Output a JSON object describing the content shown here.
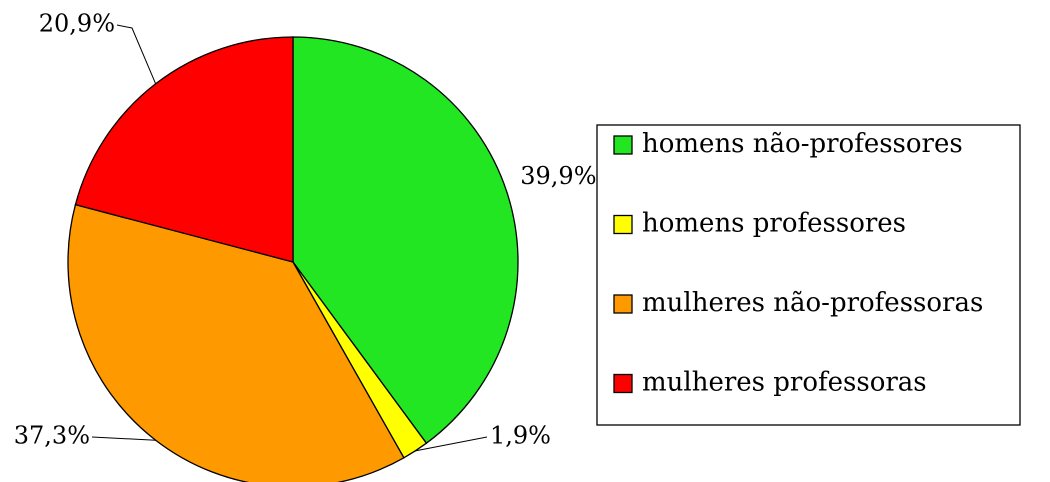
{
  "chart_data": {
    "type": "pie",
    "categories": [
      "homens não-professores",
      "homens professores",
      "mulheres não-professoras",
      "mulheres professoras"
    ],
    "values": [
      39.9,
      1.9,
      37.3,
      20.9
    ],
    "value_labels": [
      "39,9%",
      "1,9%",
      "37,3%",
      "20,9%"
    ],
    "colors": [
      "#22e622",
      "#ffff00",
      "#ff9900",
      "#ff0000"
    ],
    "legend": "right"
  }
}
